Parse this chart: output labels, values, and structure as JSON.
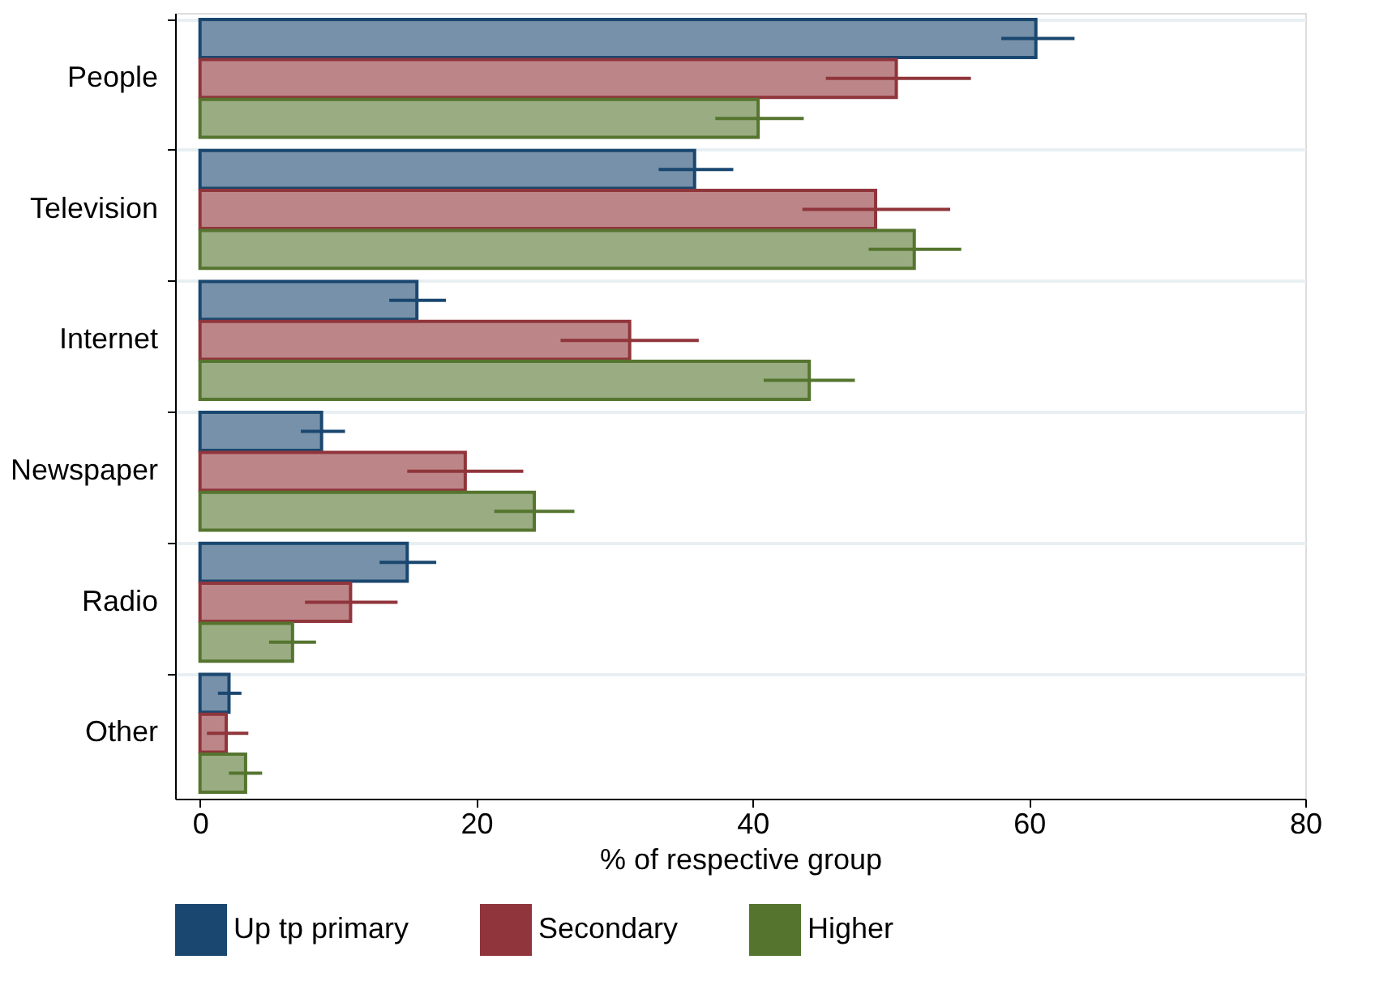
{
  "chart_data": {
    "type": "bar",
    "orientation": "horizontal",
    "xlabel": "% of respective group",
    "categories": [
      "People",
      "Television",
      "Internet",
      "Newspaper",
      "Radio",
      "Other"
    ],
    "series": [
      {
        "name": "Up tp primary",
        "color": "#1a476f",
        "values": [
          60.5,
          35.8,
          15.7,
          8.8,
          15.0,
          2.1
        ],
        "errors": [
          [
            58.0,
            63.3
          ],
          [
            33.2,
            38.6
          ],
          [
            13.7,
            17.8
          ],
          [
            7.3,
            10.5
          ],
          [
            13.0,
            17.1
          ],
          [
            1.3,
            3.0
          ]
        ]
      },
      {
        "name": "Secondary",
        "color": "#90353b",
        "values": [
          50.4,
          48.9,
          31.1,
          19.2,
          10.9,
          1.9
        ],
        "errors": [
          [
            45.3,
            55.8
          ],
          [
            43.6,
            54.3
          ],
          [
            26.1,
            36.1
          ],
          [
            15.0,
            23.4
          ],
          [
            7.6,
            14.3
          ],
          [
            0.5,
            3.5
          ]
        ]
      },
      {
        "name": "Higher",
        "color": "#55752f",
        "values": [
          40.4,
          51.7,
          44.1,
          24.2,
          6.7,
          3.3
        ],
        "errors": [
          [
            37.3,
            43.7
          ],
          [
            48.4,
            55.1
          ],
          [
            40.8,
            47.4
          ],
          [
            21.3,
            27.1
          ],
          [
            5.0,
            8.4
          ],
          [
            2.1,
            4.5
          ]
        ]
      }
    ],
    "xlim": [
      -1.8,
      80
    ],
    "xticks": [
      0,
      20,
      40,
      60,
      80
    ],
    "grid": "y",
    "legend": "bottom"
  }
}
